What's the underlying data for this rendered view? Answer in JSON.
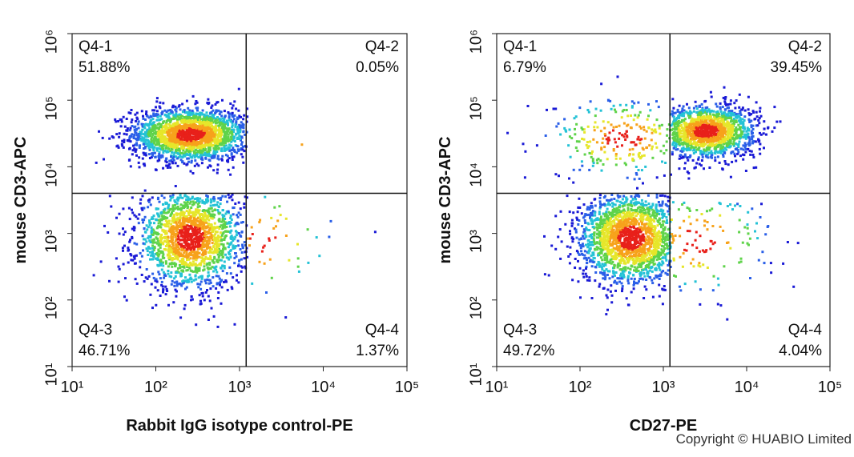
{
  "chart_data": [
    {
      "type": "scatter",
      "xlabel": "Rabbit IgG isotype control-PE",
      "ylabel": "mouse CD3-APC",
      "log_x": true,
      "log_y": true,
      "xlim": [
        10,
        100000
      ],
      "ylim": [
        10,
        1000000
      ],
      "xticks": [
        {
          "value": 10,
          "label": "10¹"
        },
        {
          "value": 100,
          "label": "10²"
        },
        {
          "value": 1000,
          "label": "10³"
        },
        {
          "value": 10000,
          "label": "10⁴"
        },
        {
          "value": 100000,
          "label": "10⁵"
        }
      ],
      "yticks": [
        {
          "value": 10,
          "label": "10¹"
        },
        {
          "value": 100,
          "label": "10²"
        },
        {
          "value": 1000,
          "label": "10³"
        },
        {
          "value": 10000,
          "label": "10⁴"
        },
        {
          "value": 100000,
          "label": "10⁵"
        },
        {
          "value": 1000000,
          "label": "10⁶"
        }
      ],
      "gate": {
        "x": 1200,
        "y": 4000
      },
      "quadrant_names": [
        "Q4-1",
        "Q4-2",
        "Q4-3",
        "Q4-4"
      ],
      "values": [
        51.88,
        0.05,
        46.71,
        1.37
      ],
      "value_labels": [
        "51.88%",
        "0.05%",
        "46.71%",
        "1.37%"
      ]
    },
    {
      "type": "scatter",
      "xlabel": "CD27-PE",
      "ylabel": "mouse CD3-APC",
      "log_x": true,
      "log_y": true,
      "xlim": [
        10,
        100000
      ],
      "ylim": [
        10,
        1000000
      ],
      "xticks": [
        {
          "value": 10,
          "label": "10¹"
        },
        {
          "value": 100,
          "label": "10²"
        },
        {
          "value": 1000,
          "label": "10³"
        },
        {
          "value": 10000,
          "label": "10⁴"
        },
        {
          "value": 100000,
          "label": "10⁵"
        }
      ],
      "yticks": [
        {
          "value": 10,
          "label": "10¹"
        },
        {
          "value": 100,
          "label": "10²"
        },
        {
          "value": 1000,
          "label": "10³"
        },
        {
          "value": 10000,
          "label": "10⁴"
        },
        {
          "value": 100000,
          "label": "10⁵"
        },
        {
          "value": 1000000,
          "label": "10⁶"
        }
      ],
      "gate": {
        "x": 1200,
        "y": 4000
      },
      "quadrant_names": [
        "Q4-1",
        "Q4-2",
        "Q4-3",
        "Q4-4"
      ],
      "values": [
        6.79,
        39.45,
        49.72,
        4.04
      ],
      "value_labels": [
        "6.79%",
        "39.45%",
        "49.72%",
        "4.04%"
      ]
    }
  ],
  "copyright": "Copyright © HUABIO Limited"
}
